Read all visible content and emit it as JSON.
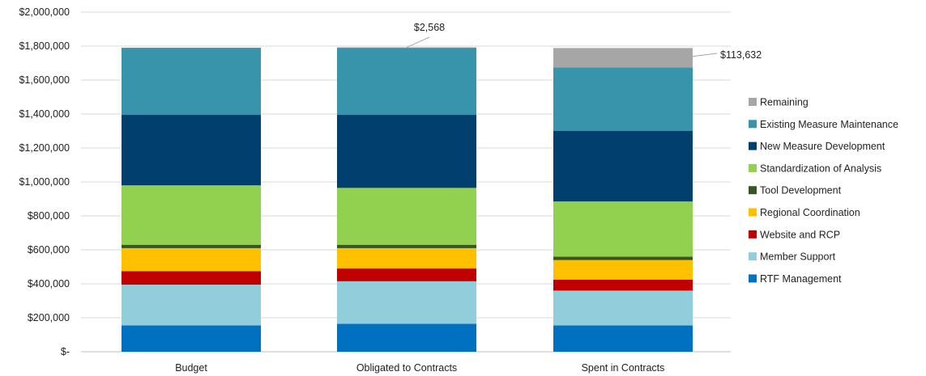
{
  "chart_data": {
    "type": "bar",
    "stacked": true,
    "categories": [
      "Budget",
      "Obligated to Contracts",
      "Spent in Contracts"
    ],
    "ylim": [
      0,
      2000000
    ],
    "ytick_values": [
      0,
      200000,
      400000,
      600000,
      800000,
      1000000,
      1200000,
      1400000,
      1600000,
      1800000,
      2000000
    ],
    "ytick_labels": [
      "$-",
      "$200,000",
      "$400,000",
      "$600,000",
      "$800,000",
      "$1,000,000",
      "$1,200,000",
      "$1,400,000",
      "$1,600,000",
      "$1,800,000",
      "$2,000,000"
    ],
    "grid": true,
    "legend_position": "right",
    "series": [
      {
        "name": "RTF Management",
        "color": "#0070c0",
        "values": [
          155000,
          165000,
          155000
        ]
      },
      {
        "name": "Member Support",
        "color": "#92cddc",
        "values": [
          240000,
          250000,
          205000
        ]
      },
      {
        "name": "Website and RCP",
        "color": "#c00000",
        "values": [
          80000,
          75000,
          65000
        ]
      },
      {
        "name": "Regional Coordination",
        "color": "#ffc000",
        "values": [
          135000,
          120000,
          115000
        ]
      },
      {
        "name": "Tool Development",
        "color": "#375623",
        "values": [
          20000,
          20000,
          20000
        ]
      },
      {
        "name": "Standardization of Analysis",
        "color": "#92d050",
        "values": [
          350000,
          335000,
          325000
        ]
      },
      {
        "name": "New Measure Development",
        "color": "#003f6e",
        "values": [
          415000,
          430000,
          415000
        ]
      },
      {
        "name": "Existing Measure Maintenance",
        "color": "#3794aa",
        "values": [
          395000,
          395000,
          375000
        ]
      },
      {
        "name": "Remaining",
        "color": "#a6a6a6",
        "values": [
          0,
          2568,
          113632
        ]
      }
    ],
    "annotations": [
      {
        "category_index": 1,
        "text": "$2,568"
      },
      {
        "category_index": 2,
        "text": "$113,632"
      }
    ]
  }
}
